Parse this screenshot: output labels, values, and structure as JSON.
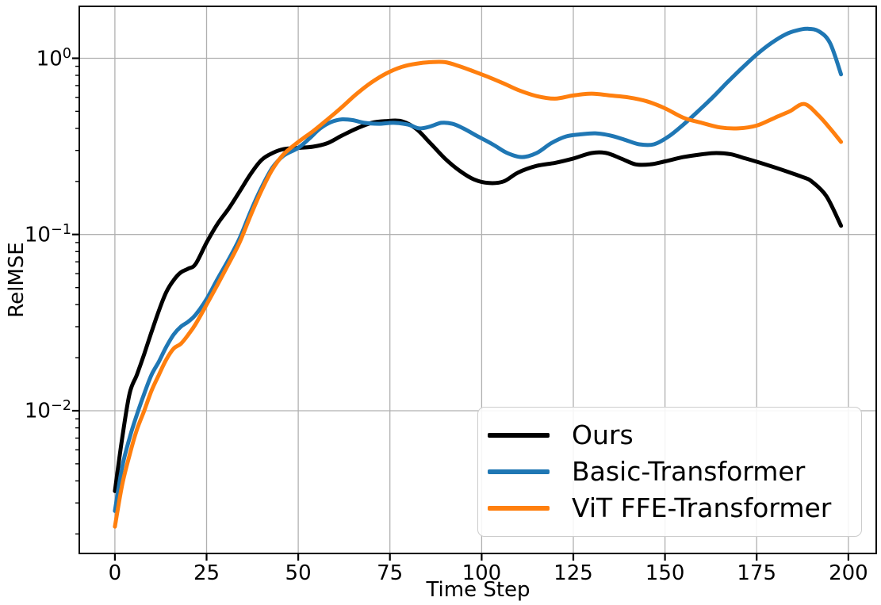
{
  "figure": {
    "background": "#ffffff"
  },
  "chart_data": {
    "type": "line",
    "xlabel": "Time Step",
    "ylabel": "RelMSE",
    "x_ticks": [
      0,
      25,
      50,
      75,
      100,
      125,
      150,
      175,
      200
    ],
    "y_scale": "log",
    "y_tick_exponents": [
      0,
      -1,
      -2
    ],
    "xlim": [
      -9.7,
      207.6
    ],
    "ylim": [
      0.00155,
      1.97
    ],
    "grid": true,
    "grid_color": "#b0b0b0",
    "legend_position": "lower right",
    "series": [
      {
        "name": "Ours",
        "color": "#000000",
        "points": [
          [
            0,
            0.0035
          ],
          [
            2,
            0.007
          ],
          [
            4,
            0.0125
          ],
          [
            6,
            0.016
          ],
          [
            8,
            0.021
          ],
          [
            10,
            0.028
          ],
          [
            12,
            0.037
          ],
          [
            14,
            0.047
          ],
          [
            16,
            0.055
          ],
          [
            18,
            0.061
          ],
          [
            20,
            0.064
          ],
          [
            22,
            0.068
          ],
          [
            25,
            0.09
          ],
          [
            28,
            0.115
          ],
          [
            31,
            0.14
          ],
          [
            34,
            0.175
          ],
          [
            37,
            0.22
          ],
          [
            40,
            0.265
          ],
          [
            43,
            0.29
          ],
          [
            46,
            0.305
          ],
          [
            50,
            0.31
          ],
          [
            54,
            0.315
          ],
          [
            58,
            0.33
          ],
          [
            62,
            0.365
          ],
          [
            66,
            0.4
          ],
          [
            70,
            0.43
          ],
          [
            74,
            0.44
          ],
          [
            78,
            0.44
          ],
          [
            82,
            0.4
          ],
          [
            86,
            0.33
          ],
          [
            90,
            0.27
          ],
          [
            94,
            0.23
          ],
          [
            98,
            0.205
          ],
          [
            102,
            0.196
          ],
          [
            106,
            0.2
          ],
          [
            110,
            0.225
          ],
          [
            115,
            0.245
          ],
          [
            120,
            0.255
          ],
          [
            125,
            0.27
          ],
          [
            130,
            0.29
          ],
          [
            134,
            0.29
          ],
          [
            138,
            0.27
          ],
          [
            142,
            0.25
          ],
          [
            146,
            0.25
          ],
          [
            150,
            0.26
          ],
          [
            155,
            0.275
          ],
          [
            160,
            0.285
          ],
          [
            164,
            0.29
          ],
          [
            168,
            0.285
          ],
          [
            172,
            0.27
          ],
          [
            176,
            0.255
          ],
          [
            180,
            0.24
          ],
          [
            184,
            0.225
          ],
          [
            188,
            0.21
          ],
          [
            190,
            0.2
          ],
          [
            194,
            0.165
          ],
          [
            198,
            0.112
          ]
        ]
      },
      {
        "name": "Basic-Transformer",
        "color": "#1f77b4",
        "points": [
          [
            0,
            0.0027
          ],
          [
            2,
            0.0048
          ],
          [
            4,
            0.007
          ],
          [
            6,
            0.0095
          ],
          [
            8,
            0.0125
          ],
          [
            10,
            0.016
          ],
          [
            12,
            0.019
          ],
          [
            14,
            0.023
          ],
          [
            16,
            0.027
          ],
          [
            18,
            0.03
          ],
          [
            20,
            0.032
          ],
          [
            22,
            0.035
          ],
          [
            25,
            0.043
          ],
          [
            28,
            0.056
          ],
          [
            31,
            0.072
          ],
          [
            34,
            0.095
          ],
          [
            37,
            0.135
          ],
          [
            40,
            0.185
          ],
          [
            43,
            0.24
          ],
          [
            46,
            0.28
          ],
          [
            50,
            0.31
          ],
          [
            53,
            0.35
          ],
          [
            56,
            0.4
          ],
          [
            59,
            0.435
          ],
          [
            62,
            0.45
          ],
          [
            65,
            0.445
          ],
          [
            68,
            0.43
          ],
          [
            72,
            0.425
          ],
          [
            76,
            0.43
          ],
          [
            80,
            0.42
          ],
          [
            83,
            0.4
          ],
          [
            86,
            0.41
          ],
          [
            89,
            0.43
          ],
          [
            92,
            0.425
          ],
          [
            95,
            0.4
          ],
          [
            99,
            0.36
          ],
          [
            103,
            0.325
          ],
          [
            107,
            0.29
          ],
          [
            111,
            0.275
          ],
          [
            115,
            0.29
          ],
          [
            119,
            0.33
          ],
          [
            123,
            0.36
          ],
          [
            127,
            0.37
          ],
          [
            131,
            0.375
          ],
          [
            135,
            0.365
          ],
          [
            139,
            0.345
          ],
          [
            143,
            0.325
          ],
          [
            147,
            0.325
          ],
          [
            151,
            0.36
          ],
          [
            155,
            0.42
          ],
          [
            159,
            0.5
          ],
          [
            163,
            0.6
          ],
          [
            167,
            0.73
          ],
          [
            171,
            0.88
          ],
          [
            175,
            1.05
          ],
          [
            179,
            1.22
          ],
          [
            183,
            1.37
          ],
          [
            186,
            1.44
          ],
          [
            189,
            1.47
          ],
          [
            192,
            1.42
          ],
          [
            195,
            1.22
          ],
          [
            198,
            0.81
          ]
        ]
      },
      {
        "name": "ViT FFE-Transformer",
        "color": "#ff7f0e",
        "points": [
          [
            0,
            0.0022
          ],
          [
            2,
            0.0038
          ],
          [
            4,
            0.0056
          ],
          [
            6,
            0.0078
          ],
          [
            8,
            0.01
          ],
          [
            10,
            0.013
          ],
          [
            12,
            0.016
          ],
          [
            14,
            0.0195
          ],
          [
            16,
            0.0225
          ],
          [
            18,
            0.024
          ],
          [
            20,
            0.027
          ],
          [
            22,
            0.031
          ],
          [
            25,
            0.04
          ],
          [
            28,
            0.052
          ],
          [
            31,
            0.068
          ],
          [
            34,
            0.09
          ],
          [
            37,
            0.128
          ],
          [
            40,
            0.178
          ],
          [
            43,
            0.235
          ],
          [
            46,
            0.285
          ],
          [
            50,
            0.335
          ],
          [
            54,
            0.385
          ],
          [
            58,
            0.45
          ],
          [
            62,
            0.53
          ],
          [
            66,
            0.63
          ],
          [
            70,
            0.73
          ],
          [
            74,
            0.82
          ],
          [
            78,
            0.89
          ],
          [
            82,
            0.93
          ],
          [
            86,
            0.95
          ],
          [
            90,
            0.95
          ],
          [
            94,
            0.9
          ],
          [
            98,
            0.84
          ],
          [
            102,
            0.78
          ],
          [
            106,
            0.72
          ],
          [
            110,
            0.66
          ],
          [
            115,
            0.61
          ],
          [
            120,
            0.59
          ],
          [
            125,
            0.615
          ],
          [
            130,
            0.63
          ],
          [
            135,
            0.615
          ],
          [
            140,
            0.6
          ],
          [
            145,
            0.57
          ],
          [
            150,
            0.52
          ],
          [
            155,
            0.46
          ],
          [
            160,
            0.43
          ],
          [
            165,
            0.405
          ],
          [
            170,
            0.4
          ],
          [
            175,
            0.415
          ],
          [
            180,
            0.46
          ],
          [
            184,
            0.5
          ],
          [
            188,
            0.55
          ],
          [
            192,
            0.47
          ],
          [
            195,
            0.4
          ],
          [
            198,
            0.335
          ]
        ]
      }
    ]
  }
}
